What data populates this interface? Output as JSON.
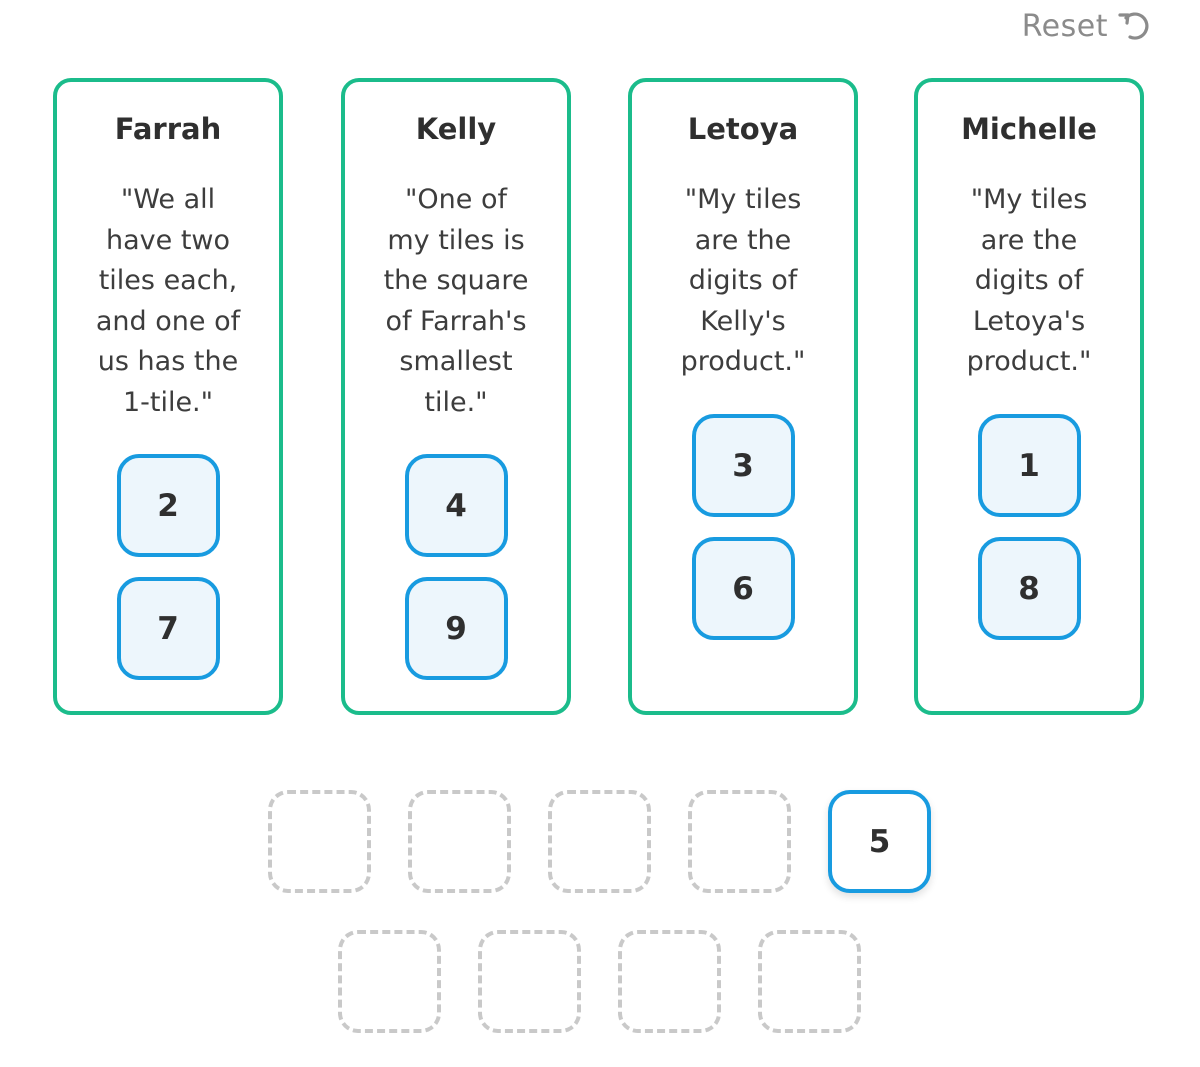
{
  "reset": {
    "label": "Reset",
    "icon": "refresh-icon"
  },
  "cards": [
    {
      "name": "Farrah",
      "quote_lines": [
        "\"We all",
        "have two",
        "tiles each,",
        "and one of",
        "us has the",
        "1-tile.\""
      ],
      "tiles": [
        "2",
        "7"
      ]
    },
    {
      "name": "Kelly",
      "quote_lines": [
        "\"One of",
        "my tiles is",
        "the square",
        "of Farrah's",
        "smallest",
        "tile.\""
      ],
      "tiles": [
        "4",
        "9"
      ]
    },
    {
      "name": "Letoya",
      "quote_lines": [
        "\"My tiles",
        "are the",
        "digits of",
        "Kelly's",
        "product.\""
      ],
      "tiles": [
        "3",
        "6"
      ]
    },
    {
      "name": "Michelle",
      "quote_lines": [
        "\"My tiles",
        "are the",
        "digits of",
        "Letoya's",
        "product.\""
      ],
      "tiles": [
        "1",
        "8"
      ]
    }
  ],
  "pool": {
    "row1": [
      "",
      "",
      "",
      "",
      "5"
    ],
    "row2": [
      "",
      "",
      "",
      ""
    ]
  },
  "colors": {
    "card_border": "#1bbc8b",
    "tile_border": "#189be0",
    "tile_fill": "#edf6fc",
    "slot_border": "#c9c9c9",
    "reset_text": "#8b8b8b"
  }
}
